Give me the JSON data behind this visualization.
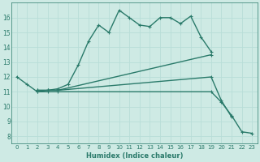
{
  "series": [
    {
      "x": [
        0,
        1,
        2,
        3,
        4,
        5,
        6,
        7,
        8,
        9,
        10,
        11,
        12,
        13,
        14,
        15,
        16,
        17,
        18,
        19
      ],
      "y": [
        12.0,
        11.5,
        11.0,
        11.1,
        11.2,
        11.5,
        12.8,
        14.4,
        15.5,
        15.0,
        16.5,
        16.0,
        15.5,
        15.4,
        16.0,
        16.0,
        15.6,
        16.1,
        14.7,
        13.7
      ],
      "color": "#2a7a6a",
      "linewidth": 1.0,
      "marker": "+"
    },
    {
      "x": [
        2,
        3,
        4,
        19
      ],
      "y": [
        11.1,
        11.1,
        11.1,
        13.5
      ],
      "color": "#2a7a6a",
      "linewidth": 1.0,
      "marker": "+"
    },
    {
      "x": [
        2,
        3,
        4,
        19,
        20,
        21
      ],
      "y": [
        11.1,
        11.1,
        11.1,
        12.0,
        10.4,
        9.3
      ],
      "color": "#2a7a6a",
      "linewidth": 1.0,
      "marker": "+"
    },
    {
      "x": [
        2,
        3,
        4,
        19,
        20,
        21,
        22,
        23
      ],
      "y": [
        11.0,
        11.0,
        11.0,
        11.0,
        10.3,
        9.4,
        8.3,
        8.2
      ],
      "color": "#2a7a6a",
      "linewidth": 1.0,
      "marker": "+"
    }
  ],
  "xlabel": "Humidex (Indice chaleur)",
  "xlim": [
    -0.5,
    23.5
  ],
  "ylim": [
    7.5,
    17.0
  ],
  "yticks": [
    8,
    9,
    10,
    11,
    12,
    13,
    14,
    15,
    16
  ],
  "xticks": [
    0,
    1,
    2,
    3,
    4,
    5,
    6,
    7,
    8,
    9,
    10,
    11,
    12,
    13,
    14,
    15,
    16,
    17,
    18,
    19,
    20,
    21,
    22,
    23
  ],
  "grid_color": "#b8ddd8",
  "bg_color": "#ceeae4",
  "tick_color": "#2a7a6a",
  "label_color": "#2a7a6a",
  "marker_size": 3.5,
  "marker_ew": 0.8
}
